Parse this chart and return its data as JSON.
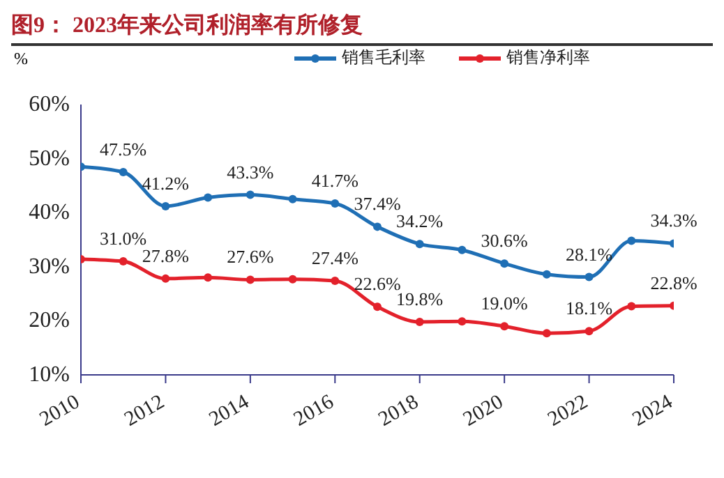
{
  "chart_data": {
    "type": "line",
    "title": "图9：  2023年来公司利润率有所修复",
    "ylabel": "%",
    "x": [
      2010,
      2011,
      2012,
      2013,
      2014,
      2015,
      2016,
      2017,
      2018,
      2019,
      2020,
      2021,
      2022,
      2023,
      2024
    ],
    "xlim": [
      2010,
      2024
    ],
    "xticks": [
      2010,
      2012,
      2014,
      2016,
      2018,
      2020,
      2022,
      2024
    ],
    "ylim": [
      10,
      60
    ],
    "yticks": [
      {
        "value": 10,
        "label": "10%"
      },
      {
        "value": 20,
        "label": "20%"
      },
      {
        "value": 30,
        "label": "30%"
      },
      {
        "value": 40,
        "label": "40%"
      },
      {
        "value": 50,
        "label": "50%"
      },
      {
        "value": 60,
        "label": "60%"
      }
    ],
    "series": [
      {
        "name": "销售毛利率",
        "color": "#1f6fb5",
        "values": [
          48.5,
          47.5,
          41.2,
          42.8,
          43.3,
          42.5,
          41.7,
          37.4,
          34.2,
          33.1,
          30.6,
          28.6,
          28.1,
          34.8,
          34.3
        ],
        "value_labels": [
          null,
          "47.5%",
          "41.2%",
          null,
          "43.3%",
          null,
          "41.7%",
          "37.4%",
          "34.2%",
          null,
          "30.6%",
          null,
          "28.1%",
          null,
          "34.3%"
        ]
      },
      {
        "name": "销售净利率",
        "color": "#e3212b",
        "values": [
          31.4,
          31.0,
          27.8,
          28.0,
          27.6,
          27.7,
          27.4,
          22.6,
          19.8,
          19.9,
          19.0,
          17.7,
          18.1,
          22.7,
          22.8
        ],
        "value_labels": [
          null,
          "31.0%",
          "27.8%",
          null,
          "27.6%",
          null,
          "27.4%",
          "22.6%",
          "19.8%",
          null,
          "19.0%",
          null,
          "18.1%",
          null,
          "22.8%"
        ]
      }
    ],
    "legend": "top",
    "marker": "circle",
    "line_style": "solid"
  }
}
